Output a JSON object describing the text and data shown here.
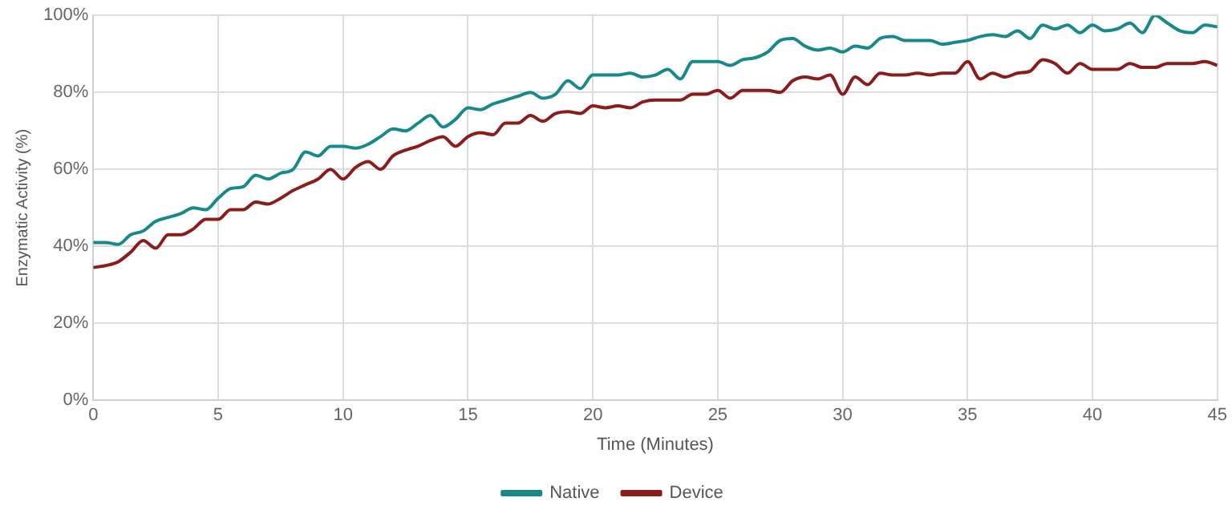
{
  "chart_data": {
    "type": "line",
    "xlabel": "Time (Minutes)",
    "ylabel": "Enzymatic Activity (%)",
    "x": [
      0,
      0.5,
      1,
      1.5,
      2,
      2.5,
      3,
      3.5,
      4,
      4.5,
      5,
      5.5,
      6,
      6.5,
      7,
      7.5,
      8,
      8.5,
      9,
      9.5,
      10,
      10.5,
      11,
      11.5,
      12,
      12.5,
      13,
      13.5,
      14,
      14.5,
      15,
      15.5,
      16,
      16.5,
      17,
      17.5,
      18,
      18.5,
      19,
      19.5,
      20,
      20.5,
      21,
      21.5,
      22,
      22.5,
      23,
      23.5,
      24,
      24.5,
      25,
      25.5,
      26,
      26.5,
      27,
      27.5,
      28,
      28.5,
      29,
      29.5,
      30,
      30.5,
      31,
      31.5,
      32,
      32.5,
      33,
      33.5,
      34,
      34.5,
      35,
      35.5,
      36,
      36.5,
      37,
      37.5,
      38,
      38.5,
      39,
      39.5,
      40,
      40.5,
      41,
      41.5,
      42,
      42.5,
      43,
      43.5,
      44,
      44.5,
      45
    ],
    "series": [
      {
        "name": "Native",
        "color": "#17898a",
        "values": [
          41,
          41,
          40.5,
          43,
          44,
          46.5,
          47.5,
          48.5,
          50,
          49.5,
          52.5,
          55,
          55.5,
          58.5,
          57.5,
          59,
          60,
          64.5,
          63.5,
          66,
          66,
          65.5,
          66.5,
          68.5,
          70.5,
          70,
          72,
          74,
          71,
          73,
          76,
          75.5,
          77,
          78,
          79,
          80,
          78.5,
          79.5,
          83,
          81,
          84.5,
          84.5,
          84.5,
          85,
          84,
          84.5,
          86,
          83.5,
          88,
          88,
          88,
          87,
          88.5,
          89,
          90.5,
          93.5,
          94,
          92,
          91,
          91.5,
          90.5,
          92,
          91.5,
          94,
          94.5,
          93.5,
          93.5,
          93.5,
          92.5,
          93,
          93.5,
          94.5,
          95,
          94.5,
          96,
          94,
          97.5,
          96.5,
          97.5,
          95.5,
          97.5,
          96,
          96.5,
          98,
          95.5,
          100,
          98,
          96,
          95.5,
          97.5,
          97
        ]
      },
      {
        "name": "Device",
        "color": "#8b1c1c",
        "values": [
          34.5,
          35,
          36,
          38.5,
          41.5,
          39.5,
          43,
          43,
          44.5,
          47,
          47,
          49.5,
          49.5,
          51.5,
          51,
          52.5,
          54.5,
          56,
          57.5,
          60,
          57.5,
          60.5,
          62,
          60,
          63.5,
          65,
          66,
          67.5,
          68.5,
          66,
          68.5,
          69.5,
          69,
          72,
          72,
          74,
          72.5,
          74.5,
          75,
          74.5,
          76.5,
          76,
          76.5,
          76,
          77.5,
          78,
          78,
          78,
          79.5,
          79.5,
          80.5,
          78.5,
          80.5,
          80.5,
          80.5,
          80,
          83,
          84,
          83.5,
          84.5,
          79.5,
          84,
          82,
          85,
          84.5,
          84.5,
          85,
          84.5,
          85,
          85,
          88,
          83.5,
          85,
          84,
          85,
          85.5,
          88.5,
          87.5,
          85,
          87.5,
          86,
          86,
          86,
          87.5,
          86.5,
          86.5,
          87.5,
          87.5,
          87.5,
          88,
          87
        ]
      }
    ],
    "xlim": [
      0,
      45
    ],
    "xticks": [
      0,
      5,
      10,
      15,
      20,
      25,
      30,
      35,
      40,
      45
    ],
    "ylim": [
      0,
      100
    ],
    "yticks": [
      {
        "value": 0,
        "label": "0%"
      },
      {
        "value": 20,
        "label": "20%"
      },
      {
        "value": 40,
        "label": "40%"
      },
      {
        "value": 60,
        "label": "60%"
      },
      {
        "value": 80,
        "label": "80%"
      },
      {
        "value": 100,
        "label": "100%"
      }
    ],
    "grid": true,
    "legend": "bottom",
    "marker": "none",
    "line_style": "solid"
  }
}
